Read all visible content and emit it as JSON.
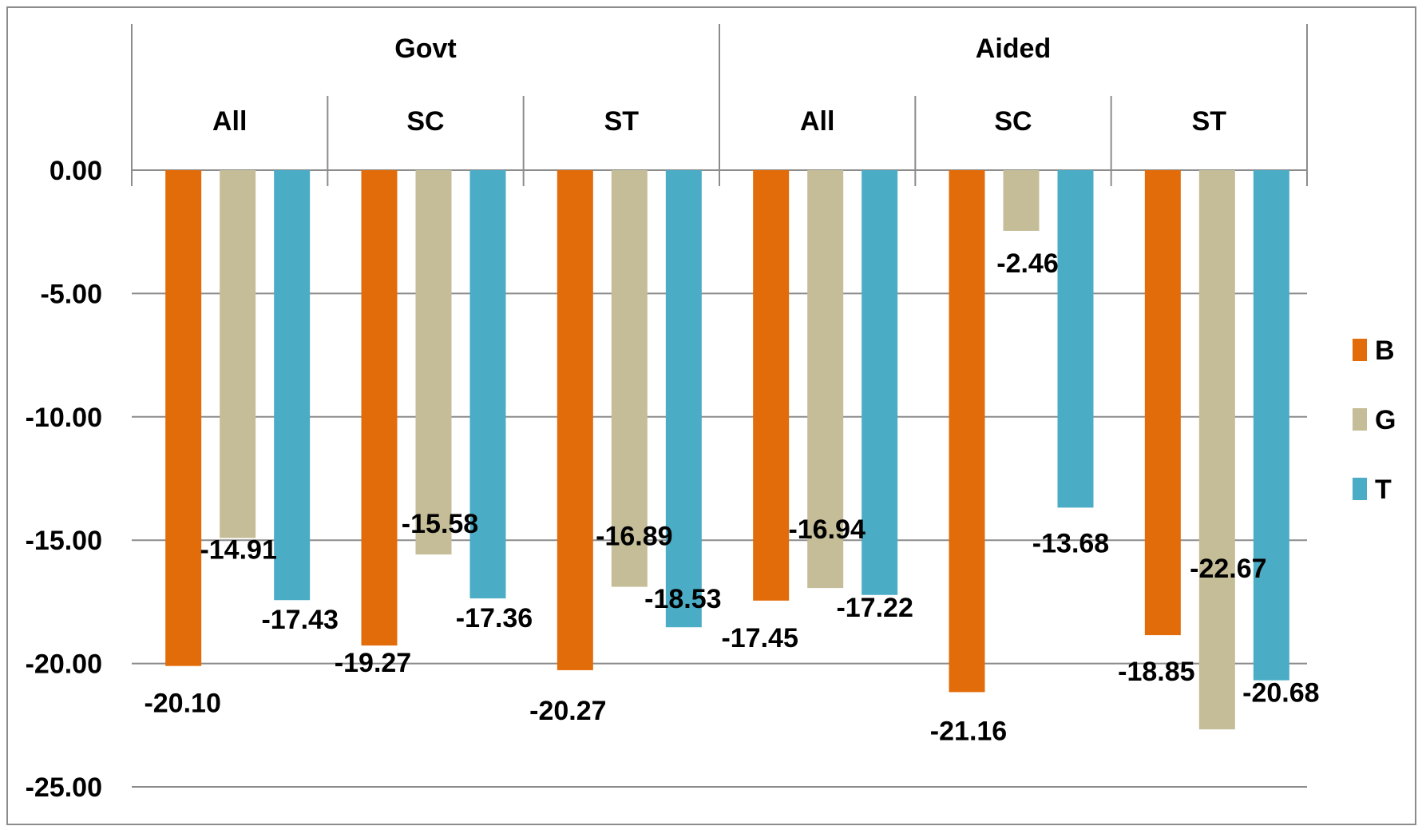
{
  "chart_data": {
    "type": "bar",
    "title": "",
    "xlabel": "",
    "ylabel": "",
    "groups": [
      {
        "label": "Govt",
        "subcategories": [
          "All",
          "SC",
          "ST"
        ]
      },
      {
        "label": "Aided",
        "subcategories": [
          "All",
          "SC",
          "ST"
        ]
      }
    ],
    "categories": [
      "All",
      "SC",
      "ST",
      "All",
      "SC",
      "ST"
    ],
    "series": [
      {
        "name": "B",
        "color": "#E36C0A",
        "values": [
          -20.1,
          -19.27,
          -20.27,
          -17.45,
          -21.16,
          -18.85
        ],
        "labels": [
          "-20.10",
          "-19.27",
          "-20.27",
          "-17.45",
          "-21.16",
          "-18.85"
        ]
      },
      {
        "name": "G",
        "color": "#C4BD97",
        "values": [
          -14.91,
          -15.58,
          -16.89,
          -16.94,
          -2.46,
          -22.67
        ],
        "labels": [
          "-14.91",
          "-15.58",
          "-16.89",
          "-16.94",
          "-2.46",
          "-22.67"
        ]
      },
      {
        "name": "T",
        "color": "#4BACC6",
        "values": [
          -17.43,
          -17.36,
          -18.53,
          -17.22,
          -13.68,
          -20.68
        ],
        "labels": [
          "-17.43",
          "-17.36",
          "-18.53",
          "-17.22",
          "-13.68",
          "-20.68"
        ]
      }
    ],
    "yticks": [
      0,
      -5,
      -10,
      -15,
      -20,
      -25
    ],
    "ytick_labels": [
      "0.00",
      "-5.00",
      "-10.00",
      "-15.00",
      "-20.00",
      "-25.00"
    ],
    "ylim": [
      -25,
      0
    ],
    "grid": true,
    "legend_position": "right"
  }
}
